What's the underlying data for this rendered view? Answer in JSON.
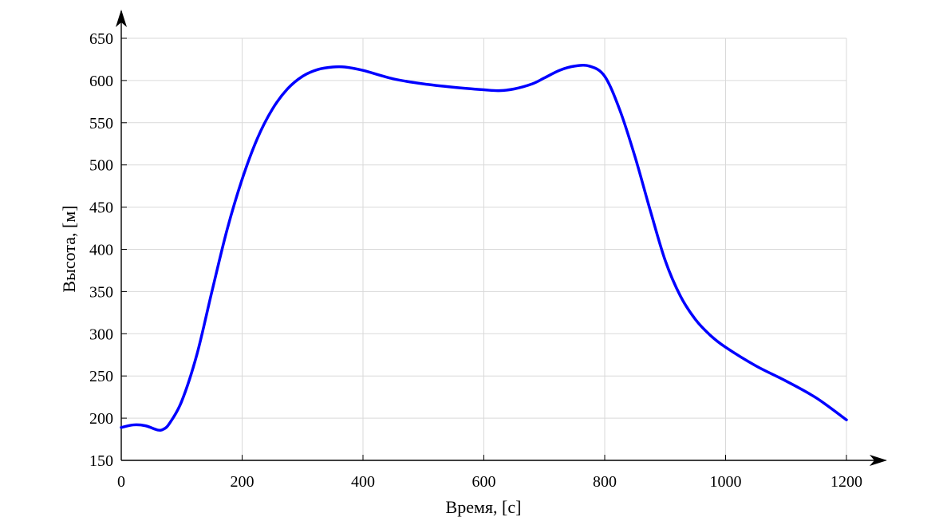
{
  "chart_data": {
    "type": "line",
    "title": "",
    "xlabel": "Время, [с]",
    "ylabel": "Высота, [м]",
    "xlim": [
      0,
      1200
    ],
    "ylim": [
      150,
      650
    ],
    "xticks": [
      0,
      200,
      400,
      600,
      800,
      1000,
      1200
    ],
    "yticks": [
      150,
      200,
      250,
      300,
      350,
      400,
      450,
      500,
      550,
      600,
      650
    ],
    "grid": true,
    "series": [
      {
        "color": "#0000ff",
        "x": [
          0,
          20,
          40,
          60,
          70,
          80,
          100,
          125,
          150,
          175,
          200,
          225,
          250,
          275,
          300,
          325,
          350,
          370,
          400,
          450,
          500,
          550,
          600,
          625,
          650,
          680,
          700,
          725,
          750,
          775,
          800,
          825,
          850,
          875,
          900,
          925,
          950,
          975,
          1000,
          1050,
          1100,
          1150,
          1200
        ],
        "y": [
          189,
          192,
          191,
          186,
          187,
          194,
          220,
          275,
          350,
          423,
          483,
          531,
          566,
          590,
          605,
          613,
          616,
          616,
          612,
          602,
          596,
          592,
          589,
          588,
          590,
          596,
          603,
          612,
          617,
          617,
          605,
          565,
          510,
          447,
          387,
          345,
          317,
          298,
          284,
          262,
          244,
          224,
          198
        ]
      }
    ]
  }
}
